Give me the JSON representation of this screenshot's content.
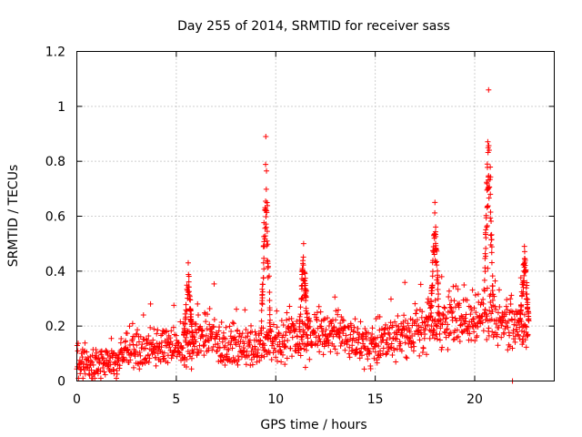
{
  "chart_data": {
    "type": "scatter",
    "title": "Day 255 of 2014, SRMTID for receiver sass",
    "xlabel": "GPS time / hours",
    "ylabel": "SRMTID / TECUs",
    "xlim": [
      0,
      24
    ],
    "ylim": [
      0,
      1.2
    ],
    "x_ticks": [
      0,
      5,
      10,
      15,
      20
    ],
    "x_tick_labels": [
      "0",
      "5",
      "10",
      "15",
      "20"
    ],
    "y_ticks": [
      0,
      0.2,
      0.4,
      0.6,
      0.8,
      1.0,
      1.2
    ],
    "y_tick_labels": [
      "0",
      "0.2",
      "0.4",
      "0.6",
      "0.8",
      "1",
      "1.2"
    ],
    "grid": true,
    "marker": "+",
    "color": "#ff0000",
    "baseline_trend": [
      {
        "x": 0.0,
        "y": 0.06
      },
      {
        "x": 1.0,
        "y": 0.06
      },
      {
        "x": 2.0,
        "y": 0.07
      },
      {
        "x": 2.5,
        "y": 0.13
      },
      {
        "x": 3.5,
        "y": 0.11
      },
      {
        "x": 4.5,
        "y": 0.13
      },
      {
        "x": 5.5,
        "y": 0.13
      },
      {
        "x": 6.5,
        "y": 0.18
      },
      {
        "x": 7.5,
        "y": 0.13
      },
      {
        "x": 8.5,
        "y": 0.12
      },
      {
        "x": 9.5,
        "y": 0.14
      },
      {
        "x": 10.5,
        "y": 0.16
      },
      {
        "x": 11.5,
        "y": 0.16
      },
      {
        "x": 12.5,
        "y": 0.17
      },
      {
        "x": 13.5,
        "y": 0.16
      },
      {
        "x": 14.5,
        "y": 0.14
      },
      {
        "x": 15.5,
        "y": 0.15
      },
      {
        "x": 16.5,
        "y": 0.17
      },
      {
        "x": 17.5,
        "y": 0.19
      },
      {
        "x": 18.5,
        "y": 0.21
      },
      {
        "x": 19.5,
        "y": 0.22
      },
      {
        "x": 20.5,
        "y": 0.23
      },
      {
        "x": 21.5,
        "y": 0.21
      },
      {
        "x": 22.5,
        "y": 0.2
      }
    ],
    "spikes": [
      {
        "x": 5.6,
        "peak": 0.43
      },
      {
        "x": 9.5,
        "peak": 0.89
      },
      {
        "x": 11.4,
        "peak": 0.5
      },
      {
        "x": 18.0,
        "peak": 0.65
      },
      {
        "x": 20.7,
        "peak": 1.06
      },
      {
        "x": 22.5,
        "peak": 0.49
      }
    ],
    "outliers": [
      {
        "x": 21.9,
        "y": 0.0
      }
    ],
    "x_end": 22.7
  }
}
